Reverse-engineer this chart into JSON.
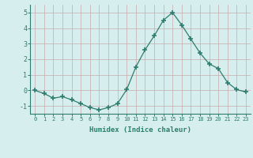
{
  "x": [
    0,
    1,
    2,
    3,
    4,
    5,
    6,
    7,
    8,
    9,
    10,
    11,
    12,
    13,
    14,
    15,
    16,
    17,
    18,
    19,
    20,
    21,
    22,
    23
  ],
  "y": [
    0.0,
    -0.2,
    -0.5,
    -0.4,
    -0.6,
    -0.85,
    -1.1,
    -1.25,
    -1.1,
    -0.85,
    0.05,
    1.5,
    2.6,
    3.5,
    4.5,
    5.0,
    4.2,
    3.3,
    2.4,
    1.7,
    1.4,
    0.5,
    0.05,
    -0.1
  ],
  "line_color": "#2e7d6e",
  "marker": "+",
  "marker_size": 5,
  "xlabel": "Humidex (Indice chaleur)",
  "ylim": [
    -1.5,
    5.5
  ],
  "xlim": [
    -0.5,
    23.5
  ],
  "yticks": [
    -1,
    0,
    1,
    2,
    3,
    4,
    5
  ],
  "xticks": [
    0,
    1,
    2,
    3,
    4,
    5,
    6,
    7,
    8,
    9,
    10,
    11,
    12,
    13,
    14,
    15,
    16,
    17,
    18,
    19,
    20,
    21,
    22,
    23
  ],
  "xtick_labels": [
    "0",
    "1",
    "2",
    "3",
    "4",
    "5",
    "6",
    "7",
    "8",
    "9",
    "10",
    "11",
    "12",
    "13",
    "14",
    "15",
    "16",
    "17",
    "18",
    "19",
    "20",
    "21",
    "22",
    "23"
  ],
  "background_color": "#d6eeee",
  "grid_color": "#c8aaaa",
  "tick_color": "#2e7d6e",
  "xlabel_color": "#2e7d6e",
  "spine_color": "#2e7d6e"
}
